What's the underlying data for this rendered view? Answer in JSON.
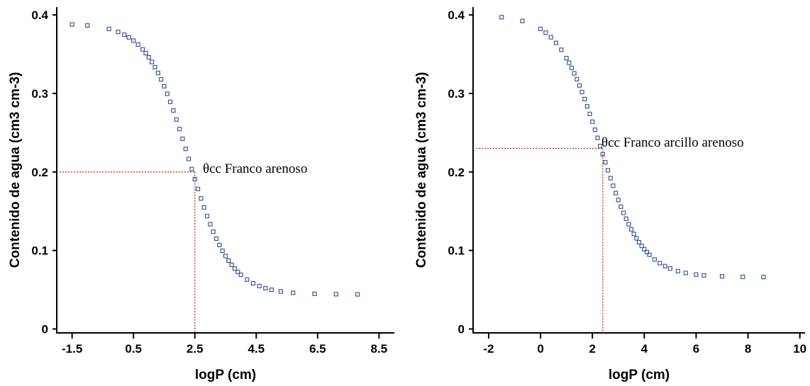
{
  "chart_data": [
    {
      "type": "scatter",
      "xlabel": "logP (cm)",
      "ylabel": "Contenido de agua (cm3 cm-3)",
      "xlim": [
        -2.0,
        9.0
      ],
      "ylim": [
        -0.005,
        0.41
      ],
      "x_ticks": [
        -1.5,
        0.5,
        2.5,
        4.5,
        6.5,
        8.5
      ],
      "x_tick_labels": [
        "-1.5",
        "0.5",
        "2.5",
        "4.5",
        "6.5",
        "8.5"
      ],
      "y_ticks": [
        0,
        0.1,
        0.2,
        0.3,
        0.4
      ],
      "y_tick_labels": [
        "0",
        "0.1",
        "0.2",
        "0.3",
        "0.4"
      ],
      "curve": {
        "theta_r": 0.044,
        "theta_s": 0.389,
        "x_mid": 2.3,
        "k": 1.5
      },
      "x": [
        -1.5,
        -1.0,
        -0.3,
        0.0,
        0.2,
        0.35,
        0.5,
        0.65,
        0.8,
        0.9,
        1.0,
        1.1,
        1.2,
        1.3,
        1.4,
        1.5,
        1.6,
        1.7,
        1.8,
        1.9,
        2.0,
        2.1,
        2.2,
        2.3,
        2.4,
        2.5,
        2.6,
        2.7,
        2.8,
        2.9,
        3.0,
        3.1,
        3.2,
        3.3,
        3.4,
        3.5,
        3.6,
        3.7,
        3.8,
        3.9,
        4.0,
        4.2,
        4.4,
        4.6,
        4.8,
        5.0,
        5.3,
        5.7,
        6.4,
        7.1,
        7.8
      ],
      "annotation": {
        "text": "θcc Franco arenoso",
        "x": 2.5,
        "y": 0.2
      }
    },
    {
      "type": "scatter",
      "xlabel": "logP (cm)",
      "ylabel": "Contenido de agua (cm3 cm-3)",
      "xlim": [
        -2.6,
        10.2
      ],
      "ylim": [
        -0.005,
        0.41
      ],
      "x_ticks": [
        -2,
        0,
        2,
        4,
        6,
        8,
        10
      ],
      "x_tick_labels": [
        "-2",
        "0",
        "2",
        "4",
        "6",
        "8",
        "10"
      ],
      "y_ticks": [
        0,
        0.1,
        0.2,
        0.3,
        0.4
      ],
      "y_tick_labels": [
        "0",
        "0.1",
        "0.2",
        "0.3",
        "0.4"
      ],
      "curve": {
        "theta_r": 0.066,
        "theta_s": 0.4,
        "x_mid": 2.3,
        "k": 1.25
      },
      "x": [
        -1.5,
        -0.7,
        0.0,
        0.2,
        0.4,
        0.6,
        0.8,
        1.0,
        1.1,
        1.2,
        1.3,
        1.4,
        1.5,
        1.6,
        1.7,
        1.8,
        1.9,
        2.0,
        2.1,
        2.2,
        2.3,
        2.4,
        2.5,
        2.6,
        2.7,
        2.8,
        2.9,
        3.0,
        3.1,
        3.2,
        3.3,
        3.4,
        3.5,
        3.6,
        3.7,
        3.8,
        3.9,
        4.0,
        4.1,
        4.2,
        4.4,
        4.6,
        4.8,
        5.0,
        5.3,
        5.6,
        6.0,
        6.3,
        7.0,
        7.8,
        8.6
      ],
      "annotation": {
        "text": "θcc Franco arcillo arenoso",
        "x": 2.4,
        "y": 0.23
      }
    }
  ]
}
